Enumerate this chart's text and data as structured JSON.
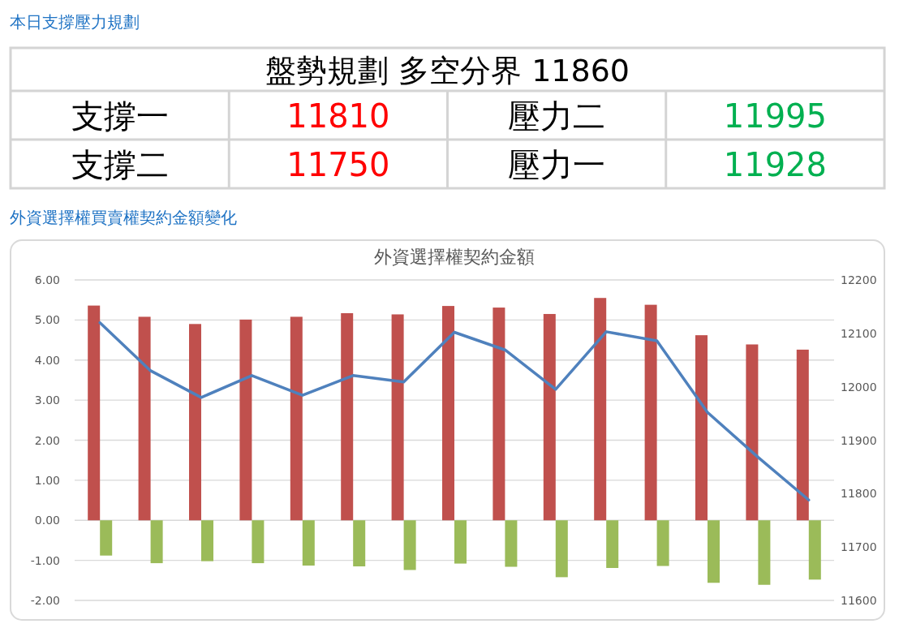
{
  "chart_data": [
    {
      "type": "other",
      "title": "本日支撐壓力規劃",
      "annotations": [
        "盤勢規劃 多空分界 11860",
        "支撐一",
        "11810",
        "壓力二",
        "11995",
        "支撐二",
        "11750",
        "壓力一",
        "11928"
      ],
      "colors": [
        null,
        null,
        "#ff0000",
        null,
        "#00b050",
        null,
        "#ff0000",
        null,
        "#00b050"
      ]
    },
    {
      "type": "bar",
      "title": "外資選擇權買賣權契約金額變化",
      "subtitle": "外資選擇權契約金額",
      "categories": [
        null,
        null,
        null,
        null,
        null,
        null,
        null,
        null,
        null,
        null,
        null,
        null,
        null,
        null,
        null
      ],
      "series": [
        {
          "type": "bar",
          "color": "#c0504d",
          "values": [
            5.36,
            5.08,
            4.9,
            5.01,
            5.08,
            5.17,
            5.14,
            5.35,
            5.31,
            5.15,
            5.55,
            5.38,
            4.62,
            4.39,
            4.26
          ]
        },
        {
          "type": "bar",
          "color": "#9bbb59",
          "values": [
            -0.88,
            -1.07,
            -1.02,
            -1.07,
            -1.13,
            -1.15,
            -1.24,
            -1.08,
            -1.16,
            -1.42,
            -1.19,
            -1.14,
            -1.56,
            -1.61,
            -1.48
          ]
        },
        {
          "type": "line",
          "axis": "y2",
          "color": "#4f81bd",
          "values": [
            12120,
            12030,
            11980,
            12021,
            11984,
            12021,
            12009,
            12102,
            12069,
            11995,
            12103,
            12086,
            11952,
            11868,
            11788
          ]
        }
      ],
      "ylim": [
        -2,
        6
      ],
      "yticks": [
        {
          "value": -2,
          "label": "-2.00"
        },
        {
          "value": -1,
          "label": "-1.00"
        },
        {
          "value": 0,
          "label": "0.00"
        },
        {
          "value": 1,
          "label": "1.00"
        },
        {
          "value": 2,
          "label": "2.00"
        },
        {
          "value": 3,
          "label": "3.00"
        },
        {
          "value": 4,
          "label": "4.00"
        },
        {
          "value": 5,
          "label": "5.00"
        },
        {
          "value": 6,
          "label": "6.00"
        }
      ],
      "y2lim": [
        11600,
        12200
      ],
      "y2ticks": [
        11600,
        11700,
        11800,
        11900,
        12000,
        12100,
        12200
      ],
      "grid": "y",
      "marker": "none",
      "line_style": "solid"
    }
  ]
}
